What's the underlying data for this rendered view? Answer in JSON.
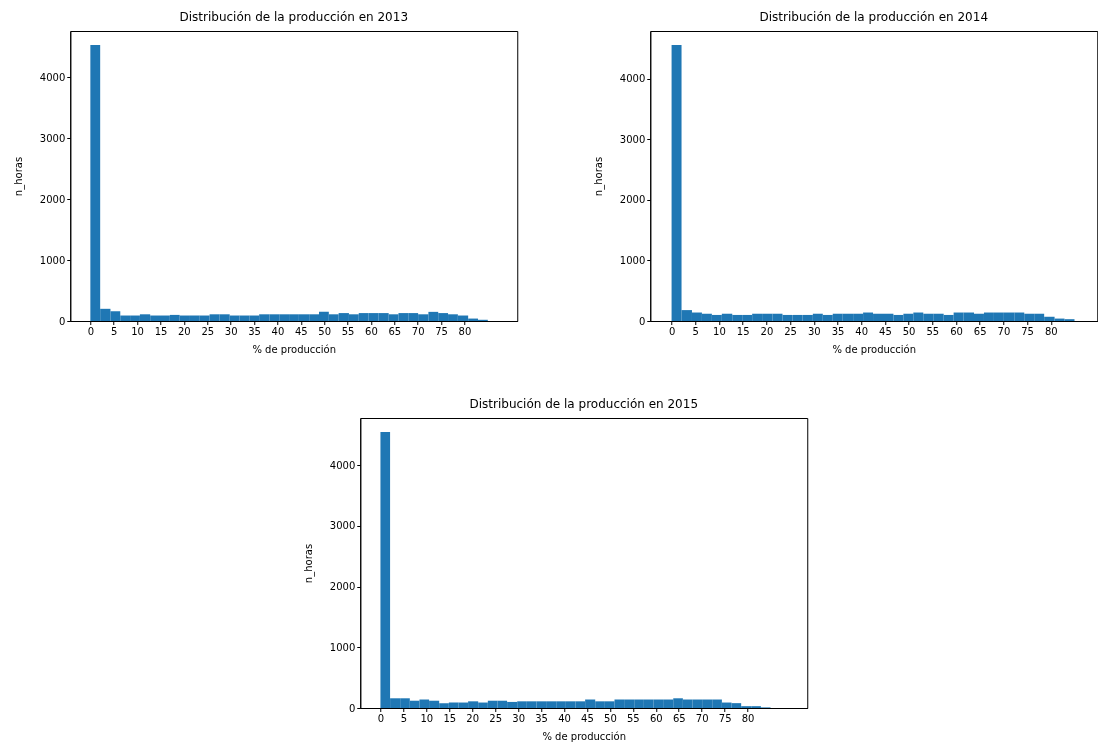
{
  "chart_data": [
    {
      "type": "histogram",
      "title": "Distribución de la producción en 2013",
      "xlabel": "% de producción",
      "ylabel": "n_horas",
      "color": "#1f77b4",
      "bins": [
        0,
        2.1,
        4.3,
        6.4,
        8.5,
        10.6,
        12.8,
        14.9,
        17,
        19.1,
        21.3,
        23.4,
        25.5,
        27.6,
        29.8,
        31.9,
        34,
        36.1,
        38.3,
        40.4,
        42.5,
        44.6,
        46.8,
        48.9,
        51,
        53.1,
        55.3,
        57.4,
        59.5,
        61.6,
        63.8,
        65.9,
        68,
        70.1,
        72.3,
        74.4,
        76.5,
        78.6,
        80.8,
        82.9,
        85
      ],
      "values": [
        4530,
        200,
        160,
        90,
        90,
        110,
        90,
        90,
        100,
        90,
        90,
        90,
        110,
        110,
        90,
        90,
        90,
        110,
        110,
        110,
        110,
        110,
        110,
        150,
        110,
        130,
        110,
        130,
        130,
        130,
        110,
        130,
        130,
        110,
        150,
        130,
        110,
        90,
        40,
        20
      ],
      "xlim": [
        -4.3,
        91.3
      ],
      "ylim": [
        0,
        4760
      ],
      "xticks": [
        0,
        5,
        10,
        15,
        20,
        25,
        30,
        35,
        40,
        45,
        50,
        55,
        60,
        65,
        70,
        75,
        80
      ],
      "yticks": [
        0,
        1000,
        2000,
        3000,
        4000
      ]
    },
    {
      "type": "histogram",
      "title": "Distribución de la producción en 2014",
      "xlabel": "% de producción",
      "ylabel": "n_horas",
      "color": "#1f77b4",
      "bins": [
        0,
        2.1,
        4.3,
        6.4,
        8.5,
        10.6,
        12.8,
        14.9,
        17,
        19.1,
        21.3,
        23.4,
        25.5,
        27.6,
        29.8,
        31.9,
        34,
        36.1,
        38.3,
        40.4,
        42.5,
        44.6,
        46.8,
        48.9,
        51,
        53.1,
        55.3,
        57.4,
        59.5,
        61.6,
        63.8,
        65.9,
        68,
        70.1,
        72.3,
        74.4,
        76.5,
        78.6,
        80.8,
        82.9,
        85
      ],
      "values": [
        4560,
        180,
        140,
        120,
        100,
        120,
        100,
        100,
        120,
        120,
        120,
        100,
        100,
        100,
        120,
        100,
        120,
        120,
        120,
        140,
        120,
        120,
        100,
        120,
        140,
        120,
        120,
        100,
        140,
        140,
        120,
        140,
        140,
        140,
        140,
        120,
        120,
        70,
        40,
        30
      ],
      "xlim": [
        -4.5,
        89.8
      ],
      "ylim": [
        0,
        4790
      ],
      "xticks": [
        0,
        5,
        10,
        15,
        20,
        25,
        30,
        35,
        40,
        45,
        50,
        55,
        60,
        65,
        70,
        75,
        80
      ],
      "yticks": [
        0,
        1000,
        2000,
        3000,
        4000
      ]
    },
    {
      "type": "histogram",
      "title": "Distribución de la producción en 2015",
      "xlabel": "% de producción",
      "ylabel": "n_horas",
      "color": "#1f77b4",
      "bins": [
        0,
        2.1,
        4.3,
        6.4,
        8.5,
        10.6,
        12.8,
        14.9,
        17,
        19.1,
        21.3,
        23.4,
        25.5,
        27.6,
        29.8,
        31.9,
        34,
        36.1,
        38.3,
        40.4,
        42.5,
        44.6,
        46.8,
        48.9,
        51,
        53.1,
        55.3,
        57.4,
        59.5,
        61.6,
        63.8,
        65.9,
        68,
        70.1,
        72.3,
        74.4,
        76.5,
        78.6,
        80.8,
        82.9,
        85
      ],
      "values": [
        4550,
        160,
        160,
        120,
        140,
        120,
        80,
        90,
        90,
        110,
        90,
        120,
        120,
        100,
        110,
        110,
        110,
        110,
        110,
        110,
        110,
        140,
        110,
        110,
        140,
        140,
        140,
        140,
        140,
        140,
        160,
        140,
        140,
        140,
        140,
        90,
        80,
        30,
        30,
        10
      ],
      "xlim": [
        -4.4,
        93
      ],
      "ylim": [
        0,
        4780
      ],
      "xticks": [
        0,
        5,
        10,
        15,
        20,
        25,
        30,
        35,
        40,
        45,
        50,
        55,
        60,
        65,
        70,
        75,
        80
      ],
      "yticks": [
        0,
        1000,
        2000,
        3000,
        4000
      ]
    }
  ]
}
